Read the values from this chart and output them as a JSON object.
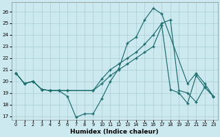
{
  "xlabel": "Humidex (Indice chaleur)",
  "bg_color": "#cde9f0",
  "grid_color": "#aacbd4",
  "line_color": "#1a6b6b",
  "xlim": [
    -0.5,
    23.5
  ],
  "ylim": [
    16.7,
    26.8
  ],
  "yticks": [
    17,
    18,
    19,
    20,
    21,
    22,
    23,
    24,
    25,
    26
  ],
  "xticks": [
    0,
    1,
    2,
    3,
    4,
    5,
    6,
    7,
    8,
    9,
    10,
    11,
    12,
    13,
    14,
    15,
    16,
    17,
    18,
    19,
    20,
    21,
    22,
    23
  ],
  "line1_x": [
    0,
    1,
    2,
    3,
    4,
    5,
    6,
    7,
    8,
    9,
    10,
    11,
    12,
    13,
    14,
    15,
    16,
    17,
    20,
    21,
    22,
    23
  ],
  "line1_y": [
    20.7,
    19.8,
    20.0,
    19.3,
    19.2,
    19.2,
    18.7,
    16.9,
    17.2,
    17.2,
    18.5,
    20.0,
    21.1,
    23.3,
    23.8,
    25.3,
    26.3,
    25.8,
    19.8,
    20.7,
    19.8,
    18.7
  ],
  "line2_x": [
    0,
    1,
    2,
    3,
    4,
    5,
    6,
    9,
    10,
    11,
    12,
    13,
    14,
    15,
    16,
    17,
    18,
    19,
    20,
    21,
    22,
    23
  ],
  "line2_y": [
    20.7,
    19.8,
    20.0,
    19.3,
    19.2,
    19.2,
    19.2,
    19.2,
    19.8,
    20.5,
    21.0,
    21.5,
    22.0,
    22.5,
    23.0,
    24.8,
    19.3,
    19.0,
    18.1,
    20.5,
    19.5,
    18.7
  ],
  "line3_x": [
    0,
    1,
    2,
    3,
    4,
    5,
    6,
    9,
    10,
    11,
    12,
    13,
    14,
    15,
    16,
    17,
    18,
    19,
    20,
    21,
    22,
    23
  ],
  "line3_y": [
    20.7,
    19.8,
    20.0,
    19.3,
    19.2,
    19.2,
    19.2,
    19.2,
    20.2,
    21.0,
    21.5,
    22.0,
    22.5,
    23.2,
    24.0,
    25.0,
    25.3,
    19.2,
    19.0,
    18.2,
    19.5,
    18.7
  ]
}
